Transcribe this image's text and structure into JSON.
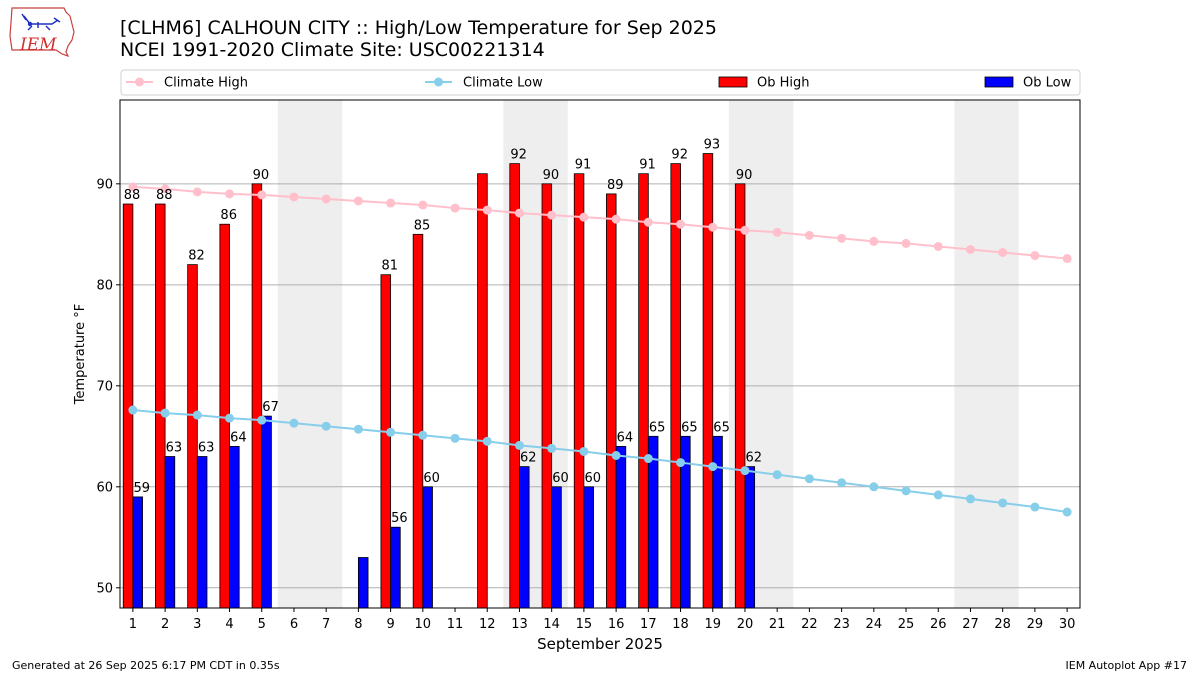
{
  "header": {
    "title": "[CLHM6] CALHOUN CITY :: High/Low Temperature for Sep 2025",
    "subtitle": "NCEI 1991-2020 Climate Site: USC00221314",
    "logo_text": "IEM"
  },
  "footer": {
    "generated": "Generated at 26 Sep 2025 6:17 PM CDT in 0.35s",
    "app": "IEM Autoplot App #17"
  },
  "chart_data": {
    "type": "bar",
    "xlabel": "September 2025",
    "ylabel": "Temperature °F",
    "ylim": [
      48,
      98.3
    ],
    "yticks": [
      50,
      60,
      70,
      80,
      90
    ],
    "grid": true,
    "legend_placement": "top",
    "categories": [
      "1",
      "2",
      "3",
      "4",
      "5",
      "6",
      "7",
      "8",
      "9",
      "10",
      "11",
      "12",
      "13",
      "14",
      "15",
      "16",
      "17",
      "18",
      "19",
      "20",
      "21",
      "22",
      "23",
      "24",
      "25",
      "26",
      "27",
      "28",
      "29",
      "30"
    ],
    "weekend_days": [
      6,
      7,
      13,
      14,
      20,
      21,
      27,
      28
    ],
    "series": [
      {
        "name": "Climate High",
        "kind": "line",
        "color": "#ffc0cb",
        "values": [
          89.7,
          89.5,
          89.2,
          89.0,
          88.9,
          88.7,
          88.5,
          88.3,
          88.1,
          87.9,
          87.6,
          87.4,
          87.1,
          86.9,
          86.7,
          86.5,
          86.2,
          86.0,
          85.7,
          85.4,
          85.2,
          84.9,
          84.6,
          84.3,
          84.1,
          83.8,
          83.5,
          83.2,
          82.9,
          82.6
        ]
      },
      {
        "name": "Climate Low",
        "kind": "line",
        "color": "#87ceeb",
        "values": [
          67.6,
          67.3,
          67.1,
          66.8,
          66.6,
          66.3,
          66.0,
          65.7,
          65.4,
          65.1,
          64.8,
          64.5,
          64.1,
          63.8,
          63.5,
          63.1,
          62.8,
          62.4,
          62.0,
          61.6,
          61.2,
          60.8,
          60.4,
          60.0,
          59.6,
          59.2,
          58.8,
          58.4,
          58.0,
          57.5
        ]
      },
      {
        "name": "Ob High",
        "kind": "bar",
        "color": "#ff0000",
        "values": [
          88,
          88,
          82,
          86,
          90,
          null,
          null,
          null,
          81,
          85,
          null,
          91,
          92,
          90,
          91,
          89,
          91,
          92,
          93,
          90,
          null,
          null,
          null,
          null,
          null,
          null,
          null,
          null,
          null,
          null
        ],
        "labels": [
          "88",
          "88",
          "82",
          "86",
          "90",
          "",
          "",
          "",
          "81",
          "85",
          "",
          "",
          "92",
          "90",
          "91",
          "89",
          "91",
          "92",
          "93",
          "90",
          "",
          "",
          "",
          "",
          "",
          "",
          "",
          "",
          "",
          ""
        ]
      },
      {
        "name": "Ob Low",
        "kind": "bar",
        "color": "#0000ff",
        "values": [
          59,
          63,
          63,
          64,
          67,
          null,
          null,
          53,
          56,
          60,
          null,
          null,
          62,
          60,
          60,
          64,
          65,
          65,
          65,
          62,
          null,
          null,
          null,
          null,
          null,
          null,
          null,
          null,
          null,
          null
        ],
        "labels": [
          "59",
          "63",
          "63",
          "64",
          "67",
          "",
          "",
          "",
          "56",
          "60",
          "",
          "",
          "62",
          "60",
          "60",
          "64",
          "65",
          "65",
          "65",
          "62",
          "",
          "",
          "",
          "",
          "",
          "",
          "",
          "",
          "",
          ""
        ]
      }
    ]
  }
}
